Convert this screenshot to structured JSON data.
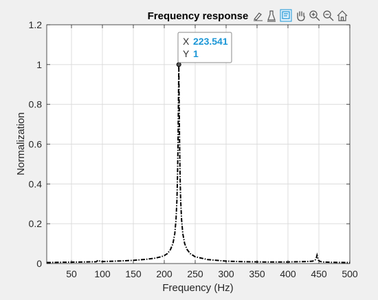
{
  "colors": {
    "figure_background": "#f0f0f0",
    "axes_background": "#ffffff",
    "grid": "#dcdcdc",
    "line": "#000000",
    "datatip_value": "#1a96d6",
    "toolbar_active": "#1a96d6"
  },
  "toolbar": {
    "buttons": [
      {
        "name": "brush-icon",
        "active": false
      },
      {
        "name": "data-cursor-icon",
        "active": false
      },
      {
        "name": "datatip-icon",
        "active": true
      },
      {
        "name": "pan-hand-icon",
        "active": false
      },
      {
        "name": "zoom-in-icon",
        "active": false
      },
      {
        "name": "zoom-out-icon",
        "active": false
      },
      {
        "name": "home-icon",
        "active": false
      }
    ]
  },
  "datatip": {
    "x_key": "X",
    "x_value": "223.541",
    "y_key": "Y",
    "y_value": "1"
  },
  "chart_data": {
    "type": "line",
    "title": "Frequency response",
    "xlabel": "Frequency (Hz)",
    "ylabel": "Normalization",
    "xlim": [
      10,
      500
    ],
    "ylim": [
      0,
      1.2
    ],
    "xticks": [
      50,
      100,
      150,
      200,
      250,
      300,
      350,
      400,
      450,
      500
    ],
    "xtick_labels": [
      "50",
      "100",
      "150",
      "200",
      "250",
      "300",
      "350",
      "400",
      "450",
      "500"
    ],
    "yticks": [
      0,
      0.2,
      0.4,
      0.6,
      0.8,
      1,
      1.2
    ],
    "ytick_labels": [
      "0",
      "0.2",
      "0.4",
      "0.6",
      "0.8",
      "1",
      "1.2"
    ],
    "grid": true,
    "legend": false,
    "line_style": "dash-dot",
    "marker_point": {
      "x": 223.541,
      "y": 1
    },
    "series": [
      {
        "x": [
          10,
          30,
          50,
          70,
          90,
          93,
          96,
          99,
          110,
          130,
          150,
          170,
          185,
          195,
          200,
          205,
          210,
          214,
          217,
          219,
          220.5,
          221.5,
          222.3,
          223,
          223.541,
          224,
          224.7,
          225.5,
          226.5,
          228,
          230,
          233,
          237,
          242,
          250,
          270,
          300,
          330,
          360,
          400,
          430,
          440,
          444,
          446,
          447,
          448,
          449,
          451,
          455,
          470,
          500
        ],
        "y": [
          0.005,
          0.006,
          0.007,
          0.008,
          0.009,
          0.016,
          0.012,
          0.01,
          0.011,
          0.013,
          0.016,
          0.021,
          0.027,
          0.034,
          0.04,
          0.05,
          0.07,
          0.1,
          0.15,
          0.22,
          0.32,
          0.45,
          0.62,
          0.84,
          1.0,
          0.84,
          0.62,
          0.45,
          0.32,
          0.22,
          0.15,
          0.1,
          0.07,
          0.05,
          0.034,
          0.02,
          0.012,
          0.009,
          0.008,
          0.008,
          0.01,
          0.012,
          0.018,
          0.03,
          0.042,
          0.03,
          0.018,
          0.012,
          0.008,
          0.006,
          0.005
        ]
      }
    ]
  }
}
